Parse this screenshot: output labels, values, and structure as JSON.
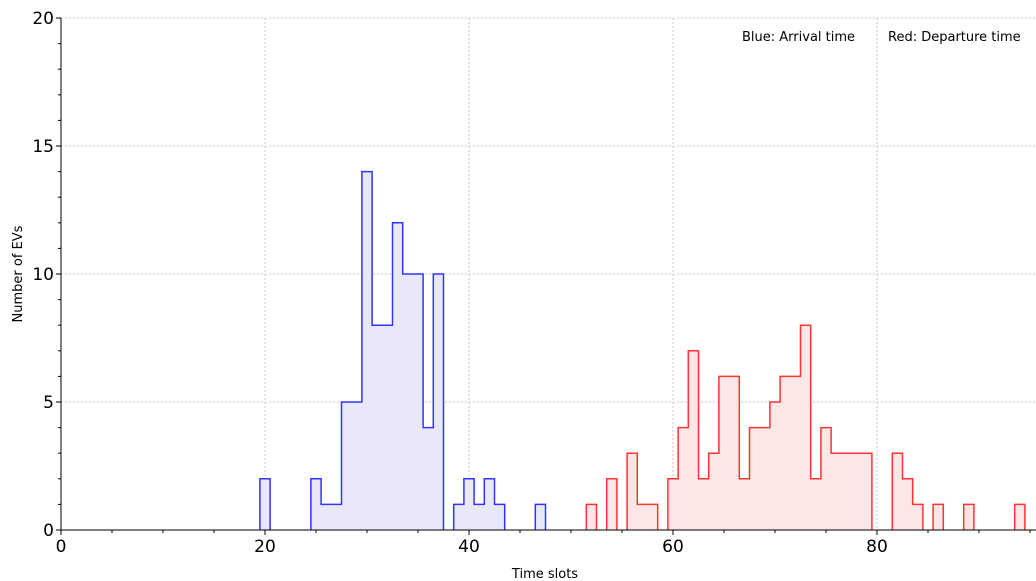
{
  "chart_data": {
    "type": "histogram",
    "xlabel": "Time slots",
    "ylabel": "Number of EVs",
    "xlim": [
      0,
      95
    ],
    "ylim": [
      0,
      20
    ],
    "x_ticks": [
      0,
      20,
      40,
      60,
      80
    ],
    "y_ticks": [
      0,
      5,
      10,
      15,
      20
    ],
    "grid": true,
    "legend_placement": "top-right",
    "annotations": [
      "Blue: Arrival time",
      "Red: Departure time"
    ],
    "series": [
      {
        "color": "#3333ff",
        "fill": "#e8e8fa",
        "bins": [
          {
            "x": 20,
            "y": 2
          },
          {
            "x": 25,
            "y": 2
          },
          {
            "x": 26,
            "y": 1
          },
          {
            "x": 27,
            "y": 1
          },
          {
            "x": 28,
            "y": 5
          },
          {
            "x": 29,
            "y": 5
          },
          {
            "x": 30,
            "y": 14
          },
          {
            "x": 31,
            "y": 8
          },
          {
            "x": 32,
            "y": 8
          },
          {
            "x": 33,
            "y": 12
          },
          {
            "x": 34,
            "y": 10
          },
          {
            "x": 35,
            "y": 10
          },
          {
            "x": 36,
            "y": 4
          },
          {
            "x": 37,
            "y": 10
          },
          {
            "x": 39,
            "y": 1
          },
          {
            "x": 40,
            "y": 2
          },
          {
            "x": 41,
            "y": 1
          },
          {
            "x": 42,
            "y": 2
          },
          {
            "x": 43,
            "y": 1
          },
          {
            "x": 47,
            "y": 1
          }
        ]
      },
      {
        "color": "#ff3333",
        "fill": "#fde6e6",
        "bins": [
          {
            "x": 52,
            "y": 1
          },
          {
            "x": 54,
            "y": 2
          },
          {
            "x": 56,
            "y": 3
          },
          {
            "x": 57,
            "y": 1
          },
          {
            "x": 58,
            "y": 1
          },
          {
            "x": 60,
            "y": 2
          },
          {
            "x": 61,
            "y": 4
          },
          {
            "x": 62,
            "y": 7
          },
          {
            "x": 63,
            "y": 2
          },
          {
            "x": 64,
            "y": 3
          },
          {
            "x": 65,
            "y": 6
          },
          {
            "x": 66,
            "y": 6
          },
          {
            "x": 67,
            "y": 2
          },
          {
            "x": 68,
            "y": 4
          },
          {
            "x": 69,
            "y": 4
          },
          {
            "x": 70,
            "y": 5
          },
          {
            "x": 71,
            "y": 6
          },
          {
            "x": 72,
            "y": 6
          },
          {
            "x": 73,
            "y": 8
          },
          {
            "x": 74,
            "y": 2
          },
          {
            "x": 75,
            "y": 4
          },
          {
            "x": 76,
            "y": 3
          },
          {
            "x": 77,
            "y": 3
          },
          {
            "x": 78,
            "y": 3
          },
          {
            "x": 79,
            "y": 3
          },
          {
            "x": 82,
            "y": 3
          },
          {
            "x": 83,
            "y": 2
          },
          {
            "x": 84,
            "y": 1
          },
          {
            "x": 86,
            "y": 1
          },
          {
            "x": 89,
            "y": 1
          },
          {
            "x": 94,
            "y": 1
          }
        ]
      }
    ]
  }
}
